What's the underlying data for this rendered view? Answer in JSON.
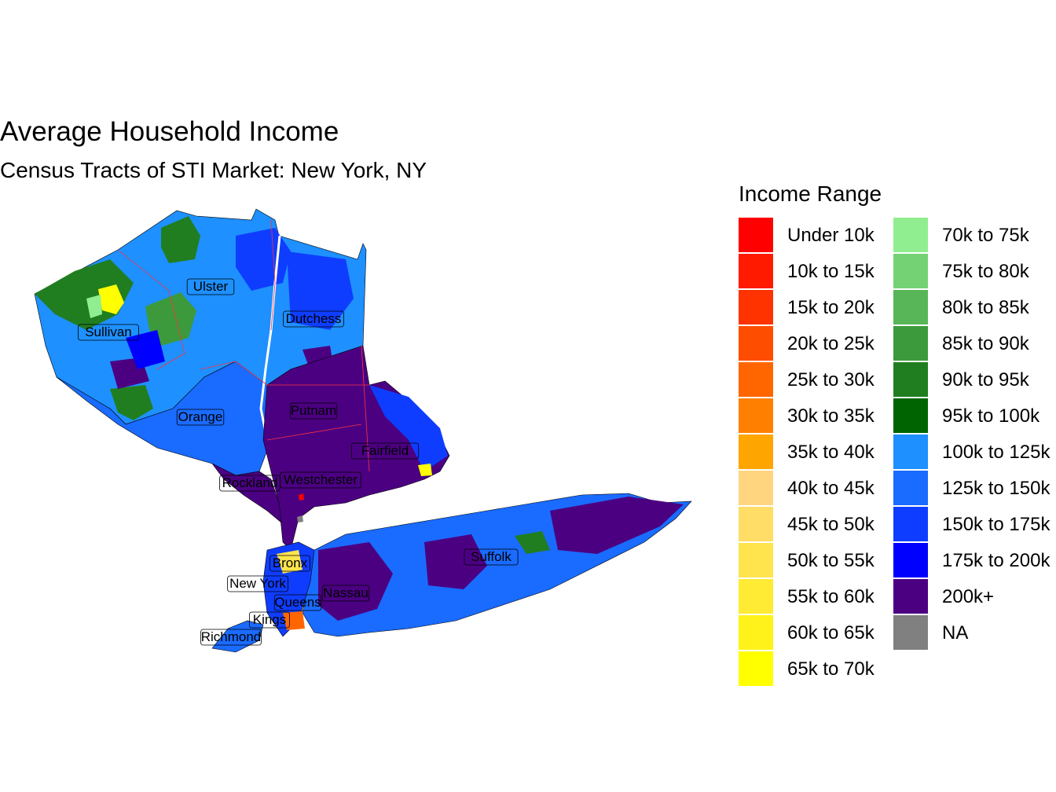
{
  "title": "Average Household Income",
  "subtitle": "Census Tracts of STI Market: New York, NY",
  "legend": {
    "title": "Income Range",
    "columns": [
      [
        {
          "label": "Under 10k",
          "color": "#FF0000"
        },
        {
          "label": "10k to 15k",
          "color": "#FF1A00"
        },
        {
          "label": "15k to 20k",
          "color": "#FF3300"
        },
        {
          "label": "20k to 25k",
          "color": "#FF4D00"
        },
        {
          "label": "25k to 30k",
          "color": "#FF6600"
        },
        {
          "label": "30k to 35k",
          "color": "#FF8000"
        },
        {
          "label": "35k to 40k",
          "color": "#FFA500"
        },
        {
          "label": "40k to 45k",
          "color": "#FFD580"
        },
        {
          "label": "45k to 50k",
          "color": "#FFDD66"
        },
        {
          "label": "50k to 55k",
          "color": "#FFE44D"
        },
        {
          "label": "55k to 60k",
          "color": "#FFEB33"
        },
        {
          "label": "60k to 65k",
          "color": "#FFF21A"
        },
        {
          "label": "65k to 70k",
          "color": "#FFFF00"
        }
      ],
      [
        {
          "label": "70k to 75k",
          "color": "#90EE90"
        },
        {
          "label": "75k to 80k",
          "color": "#74D274"
        },
        {
          "label": "80k to 85k",
          "color": "#58B658"
        },
        {
          "label": "85k to 90k",
          "color": "#3C9A3C"
        },
        {
          "label": "90k to 95k",
          "color": "#207E20"
        },
        {
          "label": "95k to 100k",
          "color": "#006400"
        },
        {
          "label": "100k to 125k",
          "color": "#1E90FF"
        },
        {
          "label": "125k to 150k",
          "color": "#1A6BFF"
        },
        {
          "label": "150k to 175k",
          "color": "#0F3DFF"
        },
        {
          "label": "175k to 200k",
          "color": "#0000FF"
        },
        {
          "label": "200k+",
          "color": "#4B0082"
        },
        {
          "label": "NA",
          "color": "#808080"
        }
      ]
    ]
  },
  "map": {
    "counties": [
      {
        "name": "Ulster"
      },
      {
        "name": "Dutchess"
      },
      {
        "name": "Sullivan"
      },
      {
        "name": "Orange"
      },
      {
        "name": "Putnam"
      },
      {
        "name": "Fairfield"
      },
      {
        "name": "Rockland"
      },
      {
        "name": "Westchester"
      },
      {
        "name": "Bronx"
      },
      {
        "name": "New York"
      },
      {
        "name": "Nassau"
      },
      {
        "name": "Queens"
      },
      {
        "name": "Kings"
      },
      {
        "name": "Richmond"
      },
      {
        "name": "Suffolk"
      }
    ]
  }
}
